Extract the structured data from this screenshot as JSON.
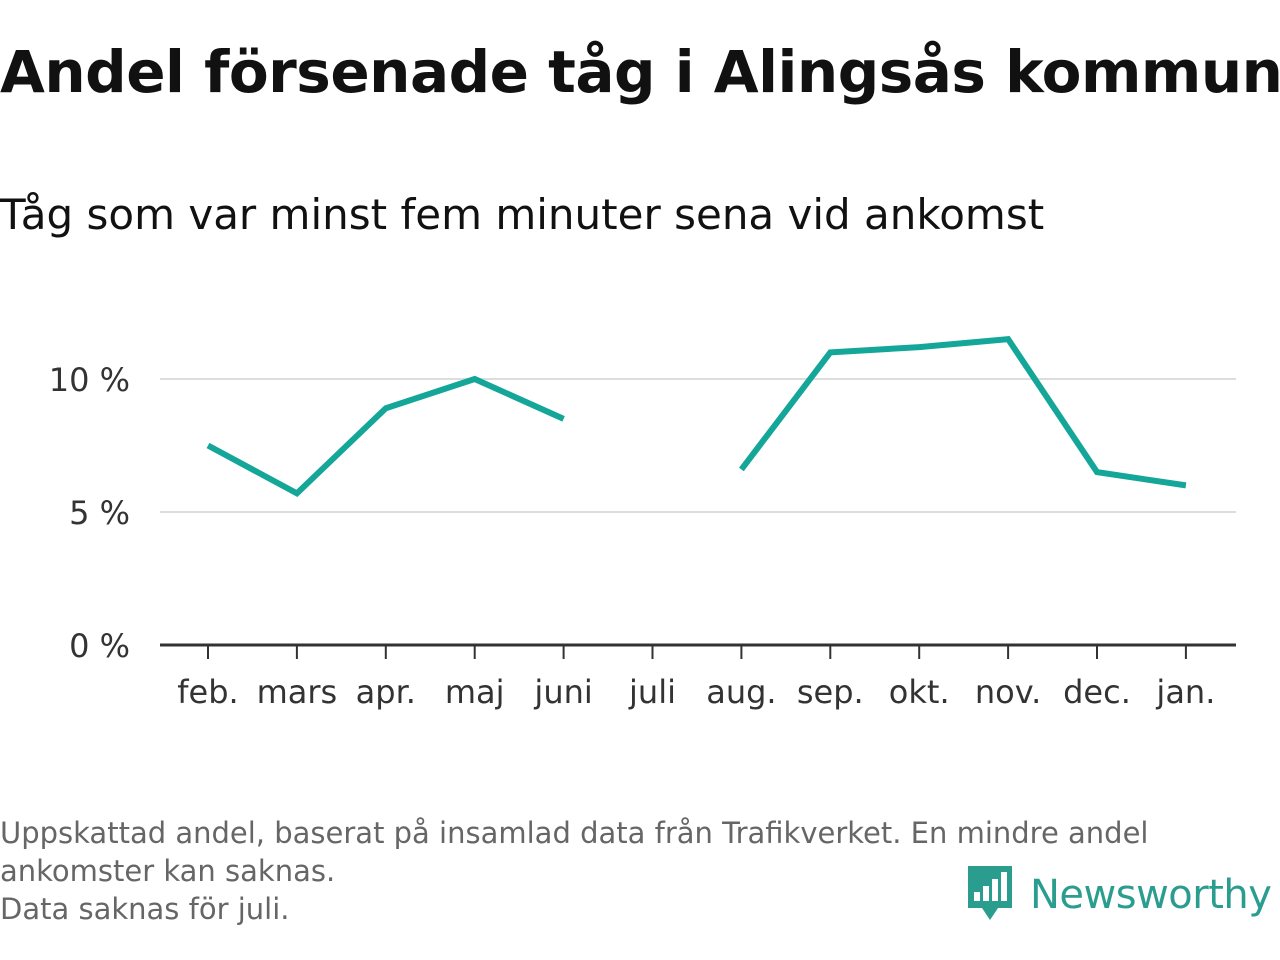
{
  "header": {
    "title": "Andel försenade tåg i Alingsås kommun",
    "subtitle": "Tåg som var minst fem minuter sena vid ankomst"
  },
  "colors": {
    "line": "#13a699",
    "grid": "#dddddd",
    "axis": "#333333",
    "brand": "#2a9d8f"
  },
  "chart_data": {
    "type": "line",
    "title": "Andel försenade tåg i Alingsås kommun",
    "subtitle": "Tåg som var minst fem minuter sena vid ankomst",
    "xlabel": "",
    "ylabel": "",
    "categories": [
      "feb.",
      "mars",
      "apr.",
      "maj",
      "juni",
      "juli",
      "aug.",
      "sep.",
      "okt.",
      "nov.",
      "dec.",
      "jan."
    ],
    "series": [
      {
        "values": [
          7.5,
          5.7,
          8.9,
          10.0,
          8.5,
          null,
          6.6,
          11.0,
          11.2,
          11.5,
          6.5,
          6.0
        ]
      }
    ],
    "ylim": [
      0,
      12
    ],
    "yticks": [
      0,
      5,
      10
    ],
    "ytick_labels": [
      "0 %",
      "5 %",
      "10 %"
    ],
    "grid": true,
    "legend": "none"
  },
  "footer": {
    "note_lines": [
      "Uppskattad andel, baserat på insamlad data från Trafikverket. En mindre andel",
      "ankomster kan saknas.",
      "Data saknas för juli."
    ],
    "brand": "Newsworthy",
    "brand_icon": "newsworthy-logo-icon"
  }
}
